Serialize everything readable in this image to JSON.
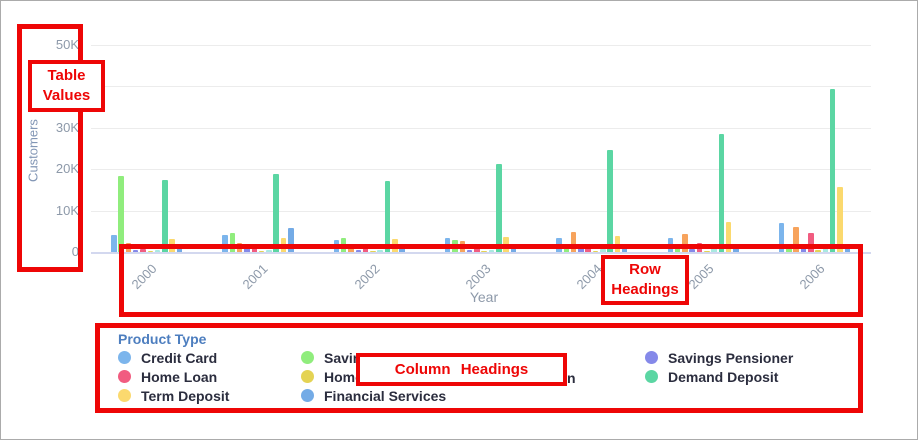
{
  "annotations": {
    "accent_color": "#ee0606",
    "table_values": {
      "line1": "Table",
      "line2": "Values"
    },
    "row_headings": {
      "line1": "Row",
      "line2": "Headings"
    },
    "column_headings": {
      "label": "Column Headings"
    },
    "covered_legend_fragment": "n"
  },
  "chart_data": {
    "type": "bar",
    "title": "",
    "xlabel": "Year",
    "ylabel": "Customers",
    "ylim": [
      0,
      50000
    ],
    "y_ticks": [
      "0",
      "10K",
      "20K",
      "30K",
      "40K",
      "50K"
    ],
    "grid": "horizontal",
    "legend_position": "bottom",
    "categories": [
      "2000",
      "2001",
      "2002",
      "2003",
      "2004",
      "2005",
      "2006"
    ],
    "series": [
      {
        "name": "Credit Card",
        "color": "#7cb5ec",
        "values": [
          4100,
          4100,
          2900,
          3400,
          3400,
          3400,
          7000
        ]
      },
      {
        "name": "Saving… (label partly covered)",
        "color": "#90ed7d",
        "values": [
          18300,
          4600,
          3300,
          2900,
          1400,
          1000,
          1600
        ]
      },
      {
        "name": "(label covered by annotation)",
        "color": "#f7a35c",
        "values": [
          2200,
          2200,
          1500,
          2600,
          4800,
          4300,
          6000
        ]
      },
      {
        "name": "Savings Pensioner",
        "color": "#8589e9",
        "values": [
          500,
          1700,
          600,
          600,
          1000,
          800,
          1100
        ]
      },
      {
        "name": "Home Loan",
        "color": "#f15c80",
        "values": [
          700,
          1900,
          1400,
          1800,
          1900,
          2100,
          4600
        ]
      },
      {
        "name": "Home… (label partly covered)",
        "color": "#e4d354",
        "values": [
          200,
          300,
          200,
          200,
          300,
          300,
          400
        ]
      },
      {
        "name": "(label covered by annotation)",
        "color": "#a9e9e1",
        "values": [
          400,
          600,
          500,
          500,
          700,
          900,
          1100
        ]
      },
      {
        "name": "Demand Deposit",
        "color": "#5bd6a3",
        "values": [
          17300,
          18800,
          17100,
          21200,
          24600,
          28400,
          39300
        ]
      },
      {
        "name": "Term Deposit",
        "color": "#fbd96e",
        "values": [
          3200,
          3400,
          3100,
          3600,
          3900,
          7200,
          15700
        ]
      },
      {
        "name": "Financial Services",
        "color": "#74abe6",
        "values": [
          900,
          5800,
          900,
          900,
          1000,
          1100,
          1500
        ]
      }
    ]
  },
  "legend": {
    "title": "Product Type",
    "columns": [
      [
        {
          "label": "Credit Card",
          "color": "#7cb5ec"
        },
        {
          "label": "Home Loan",
          "color": "#f15c80"
        },
        {
          "label": "Term Deposit",
          "color": "#fbd96e"
        }
      ],
      [
        {
          "label": "Saving",
          "color": "#90ed7d"
        },
        {
          "label": "Home",
          "color": "#e4d354"
        },
        {
          "label": "Financial Services",
          "color": "#74abe6"
        }
      ],
      [
        {
          "label": "Savings Pensioner",
          "color": "#8589e9"
        },
        {
          "label": "Demand Deposit",
          "color": "#5bd6a3"
        }
      ]
    ]
  }
}
